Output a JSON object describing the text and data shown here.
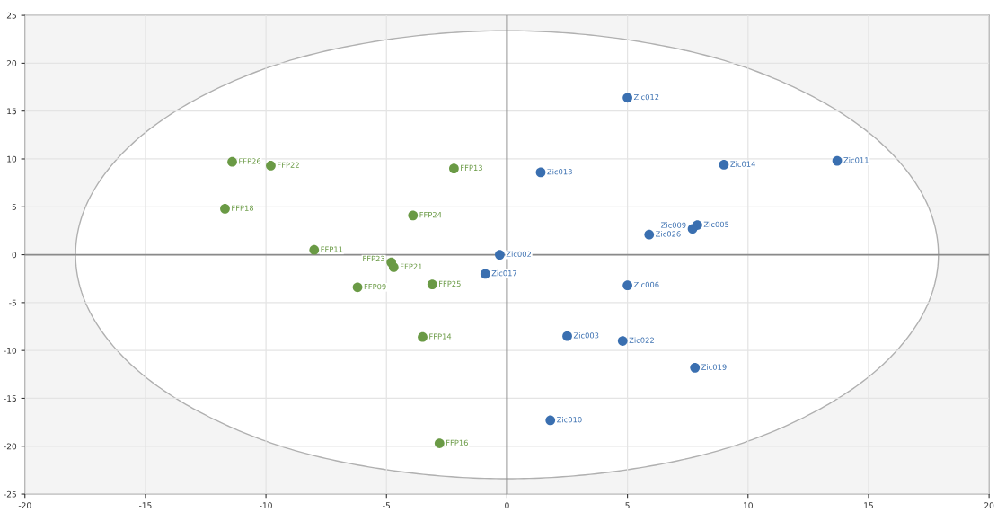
{
  "chart_data": {
    "type": "scatter",
    "xlim": [
      -20,
      20
    ],
    "ylim": [
      -25,
      25
    ],
    "xticks": [
      -20,
      -15,
      -10,
      -5,
      0,
      5,
      10,
      15,
      20
    ],
    "yticks": [
      -25,
      -20,
      -15,
      -10,
      -5,
      0,
      5,
      10,
      15,
      20,
      25
    ],
    "grid": true,
    "ref_lines": [
      {
        "axis": "x",
        "value": 0,
        "color": "#7f7f7f"
      },
      {
        "axis": "y",
        "value": 0,
        "color": "#8a8a8a"
      }
    ],
    "series": [
      {
        "type": "area",
        "color": "#b0b0b0",
        "x": [
          17.9,
          17.3,
          15.5,
          12.7,
          9.0,
          4.6,
          0,
          -4.6,
          -9.0,
          -12.7,
          -15.5,
          -17.3,
          -17.9,
          -17.3,
          -15.5,
          -12.7,
          -9.0,
          -4.6,
          0,
          4.6,
          9.0,
          12.7,
          15.5,
          17.3,
          17.9
        ],
        "values": [
          0,
          6,
          11.7,
          16.5,
          20.3,
          22.6,
          23.4,
          22.6,
          20.3,
          16.5,
          11.7,
          6,
          0,
          -6,
          -11.7,
          -16.5,
          -20.3,
          -22.6,
          -23.4,
          -22.6,
          -20.3,
          -16.5,
          -11.7,
          -6,
          0
        ]
      },
      {
        "marker": "circle",
        "color": "#6a9a45",
        "x": [
          -11.4,
          -9.8,
          -2.2,
          -11.7,
          -3.9,
          -8.0,
          -4.8,
          -4.7,
          -6.2,
          -3.1,
          -3.5,
          -2.8
        ],
        "values": [
          9.7,
          9.3,
          9.0,
          4.8,
          4.1,
          0.5,
          -0.8,
          -1.3,
          -3.4,
          -3.1,
          -8.6,
          -19.7
        ],
        "value_labels": [
          "FFP26",
          "FFP22",
          "FFP13",
          "FFP18",
          "FFP24",
          "FFP11",
          "FFP23",
          "FFP21",
          "FFP09",
          "FFP25",
          "FFP14",
          "FFP16"
        ]
      },
      {
        "marker": "circle",
        "color": "#3a6fb0",
        "x": [
          -0.3,
          -0.9,
          5.0,
          1.4,
          9.0,
          13.7,
          7.9,
          7.7,
          5.9,
          5.0,
          2.5,
          4.8,
          7.8,
          1.8
        ],
        "values": [
          0.0,
          -2.0,
          16.4,
          8.6,
          9.4,
          9.8,
          3.1,
          2.7,
          2.1,
          -3.2,
          -8.5,
          -9.0,
          -11.8,
          -17.3
        ],
        "value_labels": [
          "Zic002",
          "Zic017",
          "Zic012",
          "Zic013",
          "Zic014",
          "Zic011",
          "Zic005",
          "Zic009",
          "Zic026",
          "Zic006",
          "Zic003",
          "Zic022",
          "Zic019",
          "Zic010"
        ]
      }
    ]
  }
}
